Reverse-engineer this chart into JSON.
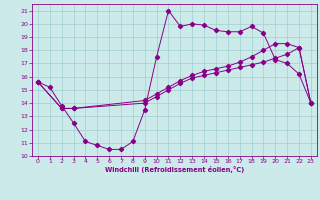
{
  "xlabel": "Windchill (Refroidissement éolien,°C)",
  "background_color": "#cceaea",
  "line_color": "#880088",
  "xlim": [
    -0.5,
    23.5
  ],
  "ylim": [
    10,
    21.5
  ],
  "xticks": [
    0,
    1,
    2,
    3,
    4,
    5,
    6,
    7,
    8,
    9,
    10,
    11,
    12,
    13,
    14,
    15,
    16,
    17,
    18,
    19,
    20,
    21,
    22,
    23
  ],
  "yticks": [
    10,
    11,
    12,
    13,
    14,
    15,
    16,
    17,
    18,
    19,
    20,
    21
  ],
  "curve1_x": [
    0,
    1,
    2,
    3,
    4,
    5,
    6,
    7,
    8,
    9,
    10,
    11,
    12,
    13,
    14,
    15,
    16,
    17,
    18,
    19,
    20,
    21,
    22,
    23
  ],
  "curve1_y": [
    15.6,
    15.2,
    13.8,
    12.5,
    11.1,
    10.8,
    10.5,
    10.5,
    11.1,
    13.5,
    17.5,
    21.0,
    19.8,
    20.0,
    19.9,
    19.5,
    19.4,
    19.4,
    19.8,
    19.3,
    17.3,
    17.0,
    16.2,
    14.0
  ],
  "curve2_x": [
    0,
    2,
    3,
    9,
    10,
    11,
    12,
    13,
    14,
    15,
    16,
    17,
    18,
    19,
    20,
    21,
    22,
    23
  ],
  "curve2_y": [
    15.6,
    13.6,
    13.6,
    14.0,
    14.5,
    15.0,
    15.5,
    15.9,
    16.1,
    16.3,
    16.5,
    16.7,
    16.9,
    17.1,
    17.4,
    17.7,
    18.2,
    14.0
  ],
  "curve3_x": [
    0,
    2,
    3,
    9,
    10,
    11,
    12,
    13,
    14,
    15,
    16,
    17,
    18,
    19,
    20,
    21,
    22,
    23
  ],
  "curve3_y": [
    15.6,
    13.6,
    13.6,
    14.2,
    14.7,
    15.2,
    15.7,
    16.1,
    16.4,
    16.6,
    16.8,
    17.1,
    17.5,
    18.0,
    18.5,
    18.5,
    18.2,
    14.0
  ]
}
